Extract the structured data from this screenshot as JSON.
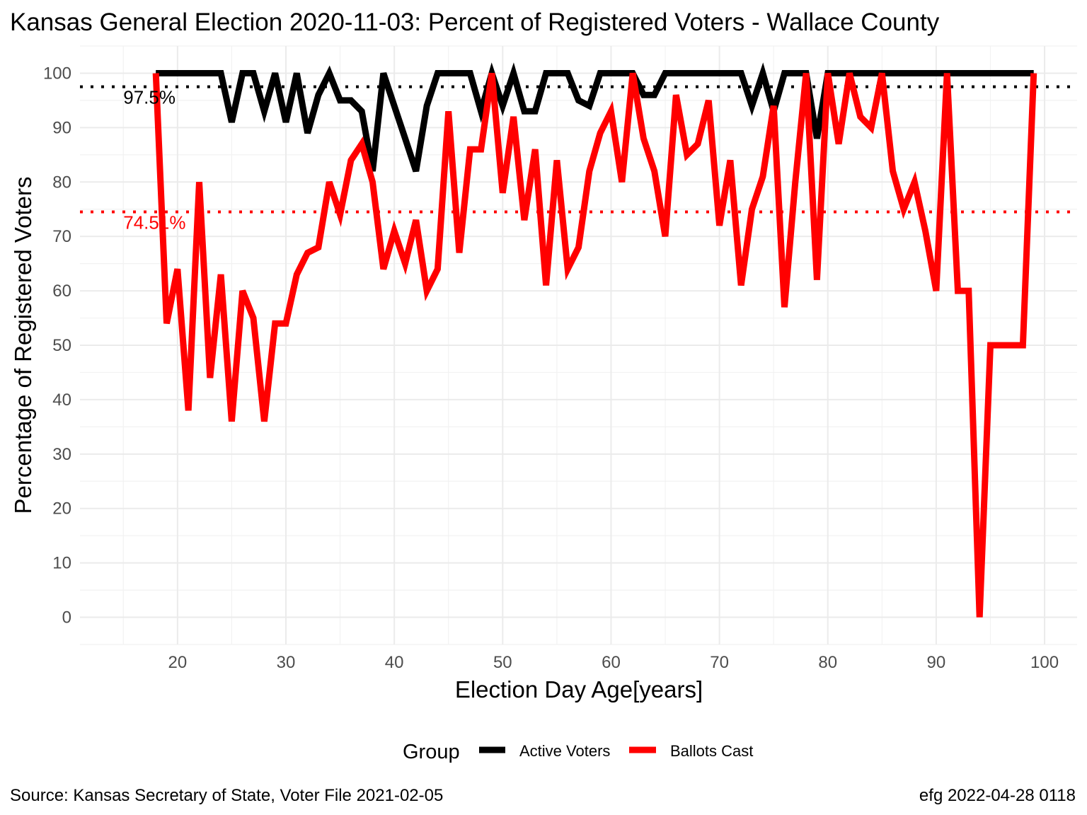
{
  "chart_data": {
    "type": "line",
    "title": "Kansas General Election 2020-11-03:  Percent of Registered Voters - Wallace County",
    "xlabel": "Election Day Age[years]",
    "ylabel": "Percentage of Registered Voters",
    "xlim": [
      11,
      103
    ],
    "ylim": [
      -5,
      105
    ],
    "x_ticks": [
      20,
      30,
      40,
      50,
      60,
      70,
      80,
      90,
      100
    ],
    "y_ticks": [
      0,
      10,
      20,
      30,
      40,
      50,
      60,
      70,
      80,
      90,
      100
    ],
    "grid": true,
    "legend": {
      "title": "Group",
      "position": "bottom",
      "entries": [
        {
          "label": "Active Voters",
          "color": "#000000"
        },
        {
          "label": "Ballots Cast",
          "color": "#ff0000"
        }
      ]
    },
    "series": [
      {
        "name": "Active Voters",
        "color": "#000000",
        "x": [
          18,
          19,
          20,
          21,
          22,
          23,
          24,
          25,
          26,
          27,
          28,
          29,
          30,
          31,
          32,
          33,
          34,
          35,
          36,
          37,
          38,
          39,
          40,
          41,
          42,
          43,
          44,
          45,
          46,
          47,
          48,
          49,
          50,
          51,
          52,
          53,
          54,
          55,
          56,
          57,
          58,
          59,
          60,
          61,
          62,
          63,
          64,
          65,
          66,
          67,
          68,
          69,
          70,
          71,
          72,
          73,
          74,
          75,
          76,
          77,
          78,
          79,
          80,
          81,
          82,
          83,
          84,
          85,
          86,
          87,
          88,
          89,
          90,
          91,
          92,
          93,
          94,
          95,
          96,
          97,
          98,
          99
        ],
        "y": [
          100,
          100,
          100,
          100,
          100,
          100,
          100,
          91,
          100,
          100,
          93,
          100,
          91,
          100,
          89,
          96,
          100,
          95,
          95,
          93,
          82,
          100,
          94,
          88,
          82,
          94,
          100,
          100,
          100,
          100,
          93,
          100,
          94,
          100,
          93,
          93,
          100,
          100,
          100,
          95,
          94,
          100,
          100,
          100,
          100,
          96,
          96,
          100,
          100,
          100,
          100,
          100,
          100,
          100,
          100,
          94,
          100,
          93,
          100,
          100,
          100,
          88,
          100,
          100,
          100,
          100,
          100,
          100,
          100,
          100,
          100,
          100,
          100,
          100,
          100,
          100,
          100,
          100,
          100,
          100,
          100,
          100
        ]
      },
      {
        "name": "Ballots Cast",
        "color": "#ff0000",
        "x": [
          18,
          19,
          20,
          21,
          22,
          23,
          24,
          25,
          26,
          27,
          28,
          29,
          30,
          31,
          32,
          33,
          34,
          35,
          36,
          37,
          38,
          39,
          40,
          41,
          42,
          43,
          44,
          45,
          46,
          47,
          48,
          49,
          50,
          51,
          52,
          53,
          54,
          55,
          56,
          57,
          58,
          59,
          60,
          61,
          62,
          63,
          64,
          65,
          66,
          67,
          68,
          69,
          70,
          71,
          72,
          73,
          74,
          75,
          76,
          77,
          78,
          79,
          80,
          81,
          82,
          83,
          84,
          85,
          86,
          87,
          88,
          89,
          90,
          91,
          92,
          93,
          94,
          95,
          96,
          97,
          98,
          99
        ],
        "y": [
          100,
          54,
          64,
          38,
          80,
          44,
          63,
          36,
          60,
          55,
          36,
          54,
          54,
          63,
          67,
          68,
          80,
          74,
          84,
          87,
          80,
          64,
          71,
          65,
          73,
          60,
          64,
          93,
          67,
          86,
          86,
          100,
          78,
          92,
          73,
          86,
          61,
          84,
          64,
          68,
          82,
          89,
          93,
          80,
          100,
          88,
          82,
          70,
          96,
          85,
          87,
          95,
          72,
          84,
          61,
          75,
          81,
          94,
          57,
          80,
          100,
          62,
          100,
          87,
          100,
          92,
          90,
          100,
          82,
          75,
          80,
          71,
          60,
          100,
          60,
          60,
          0,
          50,
          50,
          50,
          50,
          100
        ]
      }
    ],
    "reference_lines": [
      {
        "y": 97.5,
        "label": "97.5%",
        "color": "#000000"
      },
      {
        "y": 74.51,
        "label": "74.51%",
        "color": "#ff0000"
      }
    ],
    "caption_left": "Source:  Kansas Secretary of State, Voter File  2021-02-05",
    "caption_right": "efg 2022-04-28 0118"
  }
}
